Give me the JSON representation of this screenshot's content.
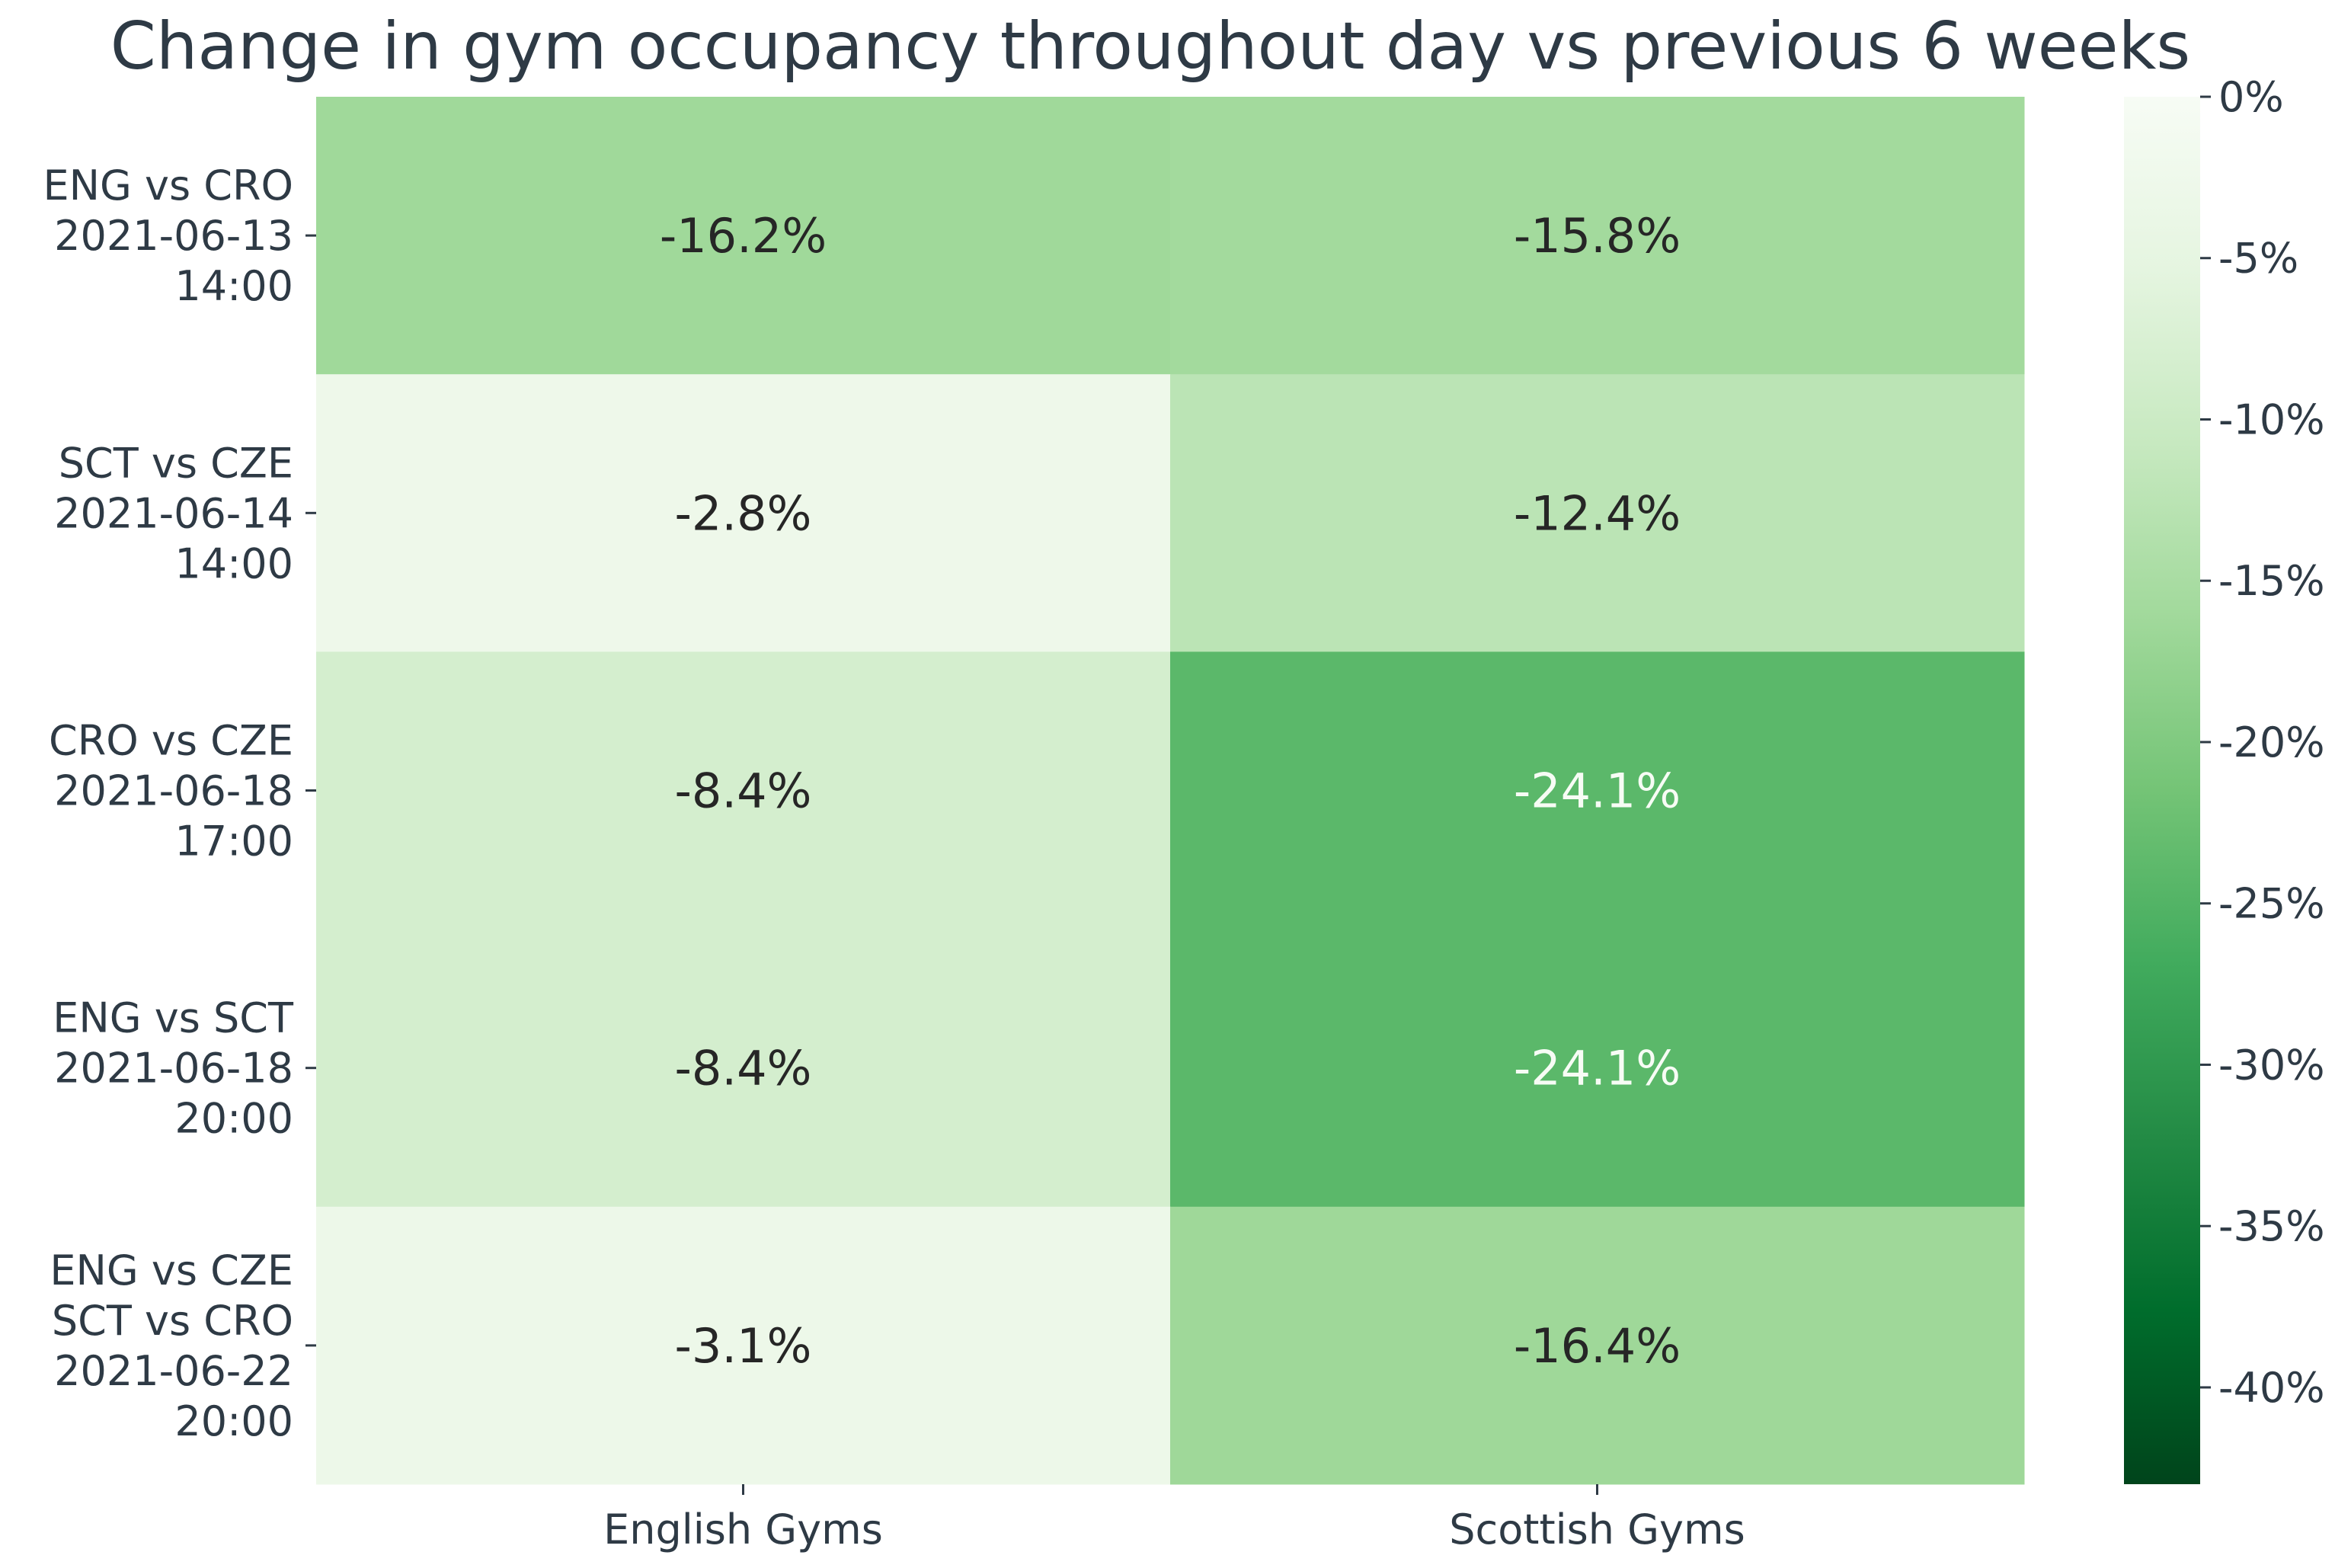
{
  "chart_data": {
    "type": "heatmap",
    "title": "Change in gym occupancy throughout day vs previous 6 weeks",
    "xlabel": "",
    "ylabel": "",
    "columns": [
      "English Gyms",
      "Scottish Gyms"
    ],
    "rows": [
      {
        "lines": [
          "ENG vs CRO",
          "2021-06-13",
          "14:00"
        ]
      },
      {
        "lines": [
          "SCT vs CZE",
          "2021-06-14",
          "14:00"
        ]
      },
      {
        "lines": [
          "CRO vs CZE",
          "2021-06-18",
          "17:00"
        ]
      },
      {
        "lines": [
          "ENG vs SCT",
          "2021-06-18",
          "20:00"
        ]
      },
      {
        "lines": [
          "ENG vs CZE",
          "SCT vs CRO",
          "2021-06-22",
          "20:00"
        ]
      }
    ],
    "values": [
      [
        -16.2,
        -15.8
      ],
      [
        -2.8,
        -12.4
      ],
      [
        -8.4,
        -24.1
      ],
      [
        -8.4,
        -24.1
      ],
      [
        -3.1,
        -16.4
      ]
    ],
    "value_labels": [
      [
        "-16.2%",
        "-15.8%"
      ],
      [
        "-2.8%",
        "-12.4%"
      ],
      [
        "-8.4%",
        "-24.1%"
      ],
      [
        "-8.4%",
        "-24.1%"
      ],
      [
        "-3.1%",
        "-16.4%"
      ]
    ],
    "colorbar": {
      "range": [
        -43,
        0
      ],
      "ticks": [
        0,
        -5,
        -10,
        -15,
        -20,
        -25,
        -30,
        -35,
        -40
      ],
      "tick_labels": [
        "0%",
        "-5%",
        "-10%",
        "-15%",
        "-20%",
        "-25%",
        "-30%",
        "-35%",
        "-40%"
      ],
      "colormap": "Greens_r"
    },
    "colors": {
      "text_dark": "#262626",
      "text_light": "#f7fcf5",
      "label": "#2e3a45",
      "cmap_stops": [
        "#00441b",
        "#006d2c",
        "#238b45",
        "#41ab5d",
        "#74c476",
        "#a1d99b",
        "#c7e9c0",
        "#e5f5e0",
        "#f7fcf5"
      ]
    }
  }
}
